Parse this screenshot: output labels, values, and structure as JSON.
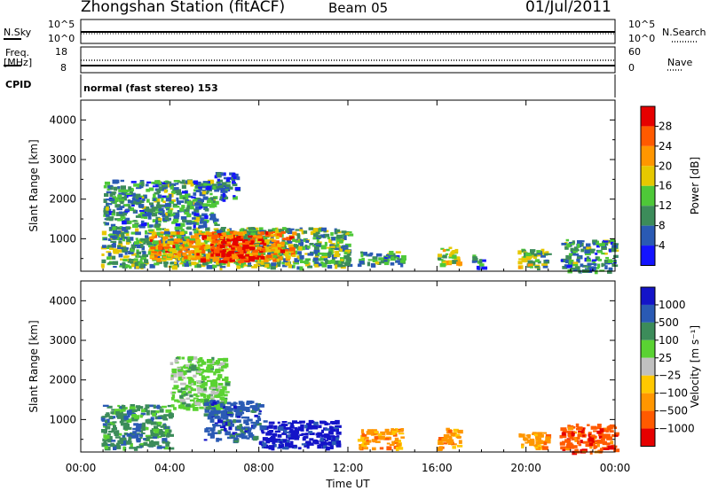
{
  "header": {
    "title": "Zhongshan Station (fitACF)",
    "beam": "Beam 05",
    "date": "01/Jul/2011"
  },
  "strip_labels": {
    "nsky": "N.Sky",
    "nsky_tick_top": "10^5",
    "nsky_tick_bottom": "10^0",
    "nsearch": "N.Search",
    "nsearch_tick_top": "10^5",
    "nsearch_tick_bottom": "10^0",
    "freq_label_1": "Freq.",
    "freq_label_2": "[MHz]",
    "freq_tick_top": "18",
    "freq_tick_bottom": "8",
    "nave": "Nave",
    "nave_tick_top": "60",
    "nave_tick_bottom": "0",
    "cpid": "CPID",
    "cpid_text": "normal (fast stereo) 153"
  },
  "colors": {
    "power_scale": [
      "#1414ff",
      "#2a5ab4",
      "#3c8c5a",
      "#4ec838",
      "#e6c800",
      "#ff9600",
      "#ff5a00",
      "#e60000"
    ],
    "velocity_scale": [
      "#e60000",
      "#ff5a00",
      "#ff9600",
      "#ffc800",
      "#c0c0c0",
      "#5ad232",
      "#3c8c5a",
      "#2a5ab4",
      "#1414c8"
    ]
  },
  "chart_data": [
    {
      "type": "heatmap",
      "name": "power",
      "ylabel": "Slant Range [km]",
      "xlabel": "",
      "x_ticks": [
        "00:00",
        "04:00",
        "08:00",
        "12:00",
        "16:00",
        "20:00",
        "00:00"
      ],
      "y_ticks": [
        1000,
        2000,
        3000,
        4000
      ],
      "xlim": [
        0,
        24
      ],
      "ylim": [
        180,
        4500
      ],
      "colorbar": {
        "label": "Power [dB]",
        "ticks": [
          "4",
          "8",
          "12",
          "16",
          "20",
          "24",
          "28"
        ],
        "range": [
          0,
          32
        ]
      },
      "regions": [
        {
          "x": [
            0.9,
            12.0
          ],
          "y": [
            300,
            1300
          ],
          "level": 12
        },
        {
          "x": [
            3.0,
            9.5
          ],
          "y": [
            500,
            1200
          ],
          "level": 22
        },
        {
          "x": [
            5.8,
            8.2
          ],
          "y": [
            450,
            1100
          ],
          "level": 28
        },
        {
          "x": [
            1.0,
            6.0
          ],
          "y": [
            1300,
            2500
          ],
          "level": 10
        },
        {
          "x": [
            6.0,
            7.0
          ],
          "y": [
            2000,
            2700
          ],
          "level": 6
        },
        {
          "x": [
            12.4,
            14.5
          ],
          "y": [
            350,
            700
          ],
          "level": 10
        },
        {
          "x": [
            16.0,
            17.0
          ],
          "y": [
            350,
            800
          ],
          "level": 16
        },
        {
          "x": [
            17.5,
            18.0
          ],
          "y": [
            300,
            600
          ],
          "level": 8
        },
        {
          "x": [
            19.6,
            21.0
          ],
          "y": [
            300,
            750
          ],
          "level": 14
        },
        {
          "x": [
            21.5,
            24.0
          ],
          "y": [
            200,
            1000
          ],
          "level": 10
        }
      ]
    },
    {
      "type": "heatmap",
      "name": "velocity",
      "ylabel": "Slant Range [km]",
      "xlabel": "Time UT",
      "x_ticks": [
        "00:00",
        "04:00",
        "08:00",
        "12:00",
        "16:00",
        "20:00",
        "00:00"
      ],
      "y_ticks": [
        1000,
        2000,
        3000,
        4000
      ],
      "xlim": [
        0,
        24
      ],
      "ylim": [
        180,
        4500
      ],
      "colorbar": {
        "label": "Velocity [m s⁻¹]",
        "ticks": [
          "1000",
          "500",
          "100",
          "25",
          "−25",
          "−100",
          "−500",
          "−1000"
        ]
      },
      "regions": [
        {
          "x": [
            0.9,
            4.0
          ],
          "y": [
            300,
            1400
          ],
          "level": 100
        },
        {
          "x": [
            4.0,
            6.5
          ],
          "y": [
            1300,
            2600
          ],
          "level": 25
        },
        {
          "x": [
            5.5,
            8.0
          ],
          "y": [
            500,
            1500
          ],
          "level": 500
        },
        {
          "x": [
            8.0,
            11.5
          ],
          "y": [
            300,
            1000
          ],
          "level": 1000
        },
        {
          "x": [
            12.4,
            14.5
          ],
          "y": [
            300,
            800
          ],
          "level": -100
        },
        {
          "x": [
            16.0,
            17.0
          ],
          "y": [
            300,
            800
          ],
          "level": -100
        },
        {
          "x": [
            19.6,
            21.0
          ],
          "y": [
            300,
            700
          ],
          "level": -100
        },
        {
          "x": [
            21.5,
            24.0
          ],
          "y": [
            200,
            900
          ],
          "level": -500
        }
      ]
    }
  ]
}
